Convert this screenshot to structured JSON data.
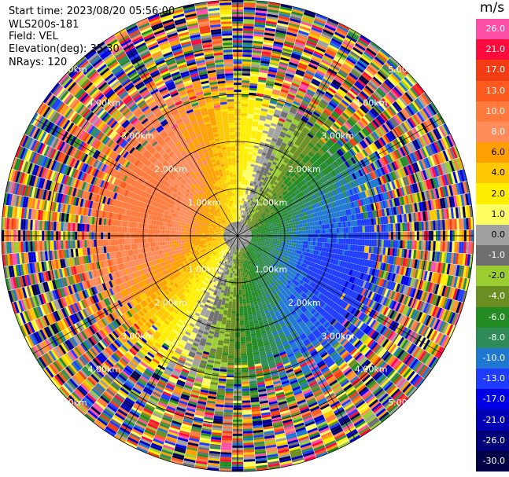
{
  "header": {
    "start_time": "Start time: 2023/08/20 05:56:00",
    "instrument": "WLS200s-181",
    "field": "Field: VEL",
    "elevation": "Elevation(deg): 35.30",
    "nrays": "NRays: 120"
  },
  "colorbar": {
    "title": "m/s",
    "bins": [
      {
        "label": "26.0",
        "color": "#ff4fa6"
      },
      {
        "label": "21.0",
        "color": "#ff0a3c"
      },
      {
        "label": "17.0",
        "color": "#f23c14"
      },
      {
        "label": "13.0",
        "color": "#ff5a1e"
      },
      {
        "label": "10.0",
        "color": "#ff7a3c"
      },
      {
        "label": "8.0",
        "color": "#ff8c5a"
      },
      {
        "label": "6.0",
        "color": "#ffa000"
      },
      {
        "label": "4.0",
        "color": "#ffc800"
      },
      {
        "label": "2.0",
        "color": "#ffee00"
      },
      {
        "label": "1.0",
        "color": "#ffff64"
      },
      {
        "label": "0.0",
        "color": "#a0a0a0"
      },
      {
        "label": "-1.0",
        "color": "#6e6e6e"
      },
      {
        "label": "-2.0",
        "color": "#9acd32"
      },
      {
        "label": "-4.0",
        "color": "#6b8e23"
      },
      {
        "label": "-6.0",
        "color": "#228b22"
      },
      {
        "label": "-8.0",
        "color": "#2e8b57"
      },
      {
        "label": "-10.0",
        "color": "#1e78d2"
      },
      {
        "label": "-13.0",
        "color": "#1e3cff"
      },
      {
        "label": "-17.0",
        "color": "#0000e6"
      },
      {
        "label": "-21.0",
        "color": "#0000b4"
      },
      {
        "label": "-26.0",
        "color": "#000078"
      },
      {
        "label": "-30.0",
        "color": "#000046"
      }
    ]
  },
  "chart_data": {
    "type": "heatmap",
    "projection": "PPI polar",
    "field": "VEL",
    "units": "m/s",
    "nrays": 120,
    "range_rings_km": [
      1.0,
      2.0,
      3.0,
      4.0,
      5.0
    ],
    "ring_labels": [
      "1.00km",
      "2.00km",
      "3.00km",
      "4.00km",
      "5.00km"
    ],
    "value_range": [
      -30.0,
      26.0
    ]
  }
}
